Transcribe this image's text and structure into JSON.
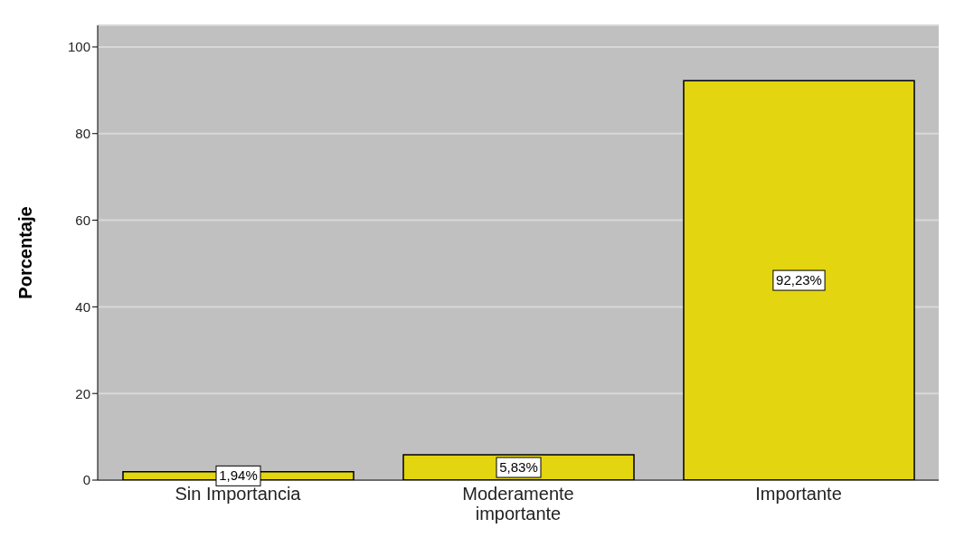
{
  "chart_data": {
    "type": "bar",
    "ylabel": "Porcentaje",
    "categories": [
      "Sin Importancia",
      "Moderamente importante",
      "Importante"
    ],
    "values": [
      1.94,
      5.83,
      92.23
    ],
    "value_labels": [
      "1,94%",
      "5,83%",
      "92,23%"
    ],
    "color": "#e3d510",
    "ylim": [
      0,
      105
    ],
    "yticks": [
      0,
      20,
      40,
      60,
      80,
      100
    ],
    "grid": "y"
  }
}
